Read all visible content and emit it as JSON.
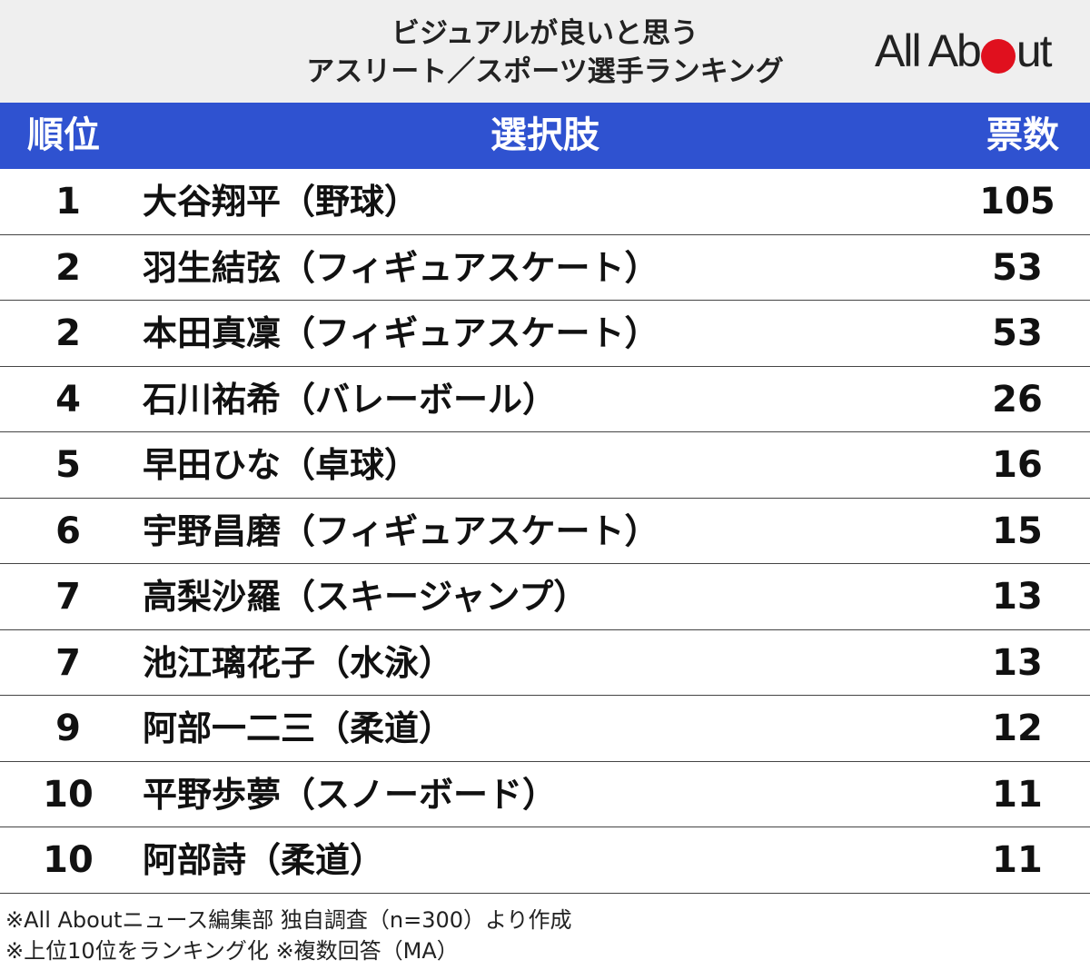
{
  "header": {
    "title_line1": "ビジュアルが良いと思う",
    "title_line2": "アスリート／スポーツ選手ランキング",
    "logo_left": "All Ab",
    "logo_right": "ut"
  },
  "table": {
    "col_rank": "順位",
    "col_choice": "選択肢",
    "col_votes": "票数"
  },
  "chart_data": {
    "type": "table",
    "columns": [
      "順位",
      "選択肢",
      "票数"
    ],
    "rows": [
      {
        "rank": "1",
        "name": "大谷翔平（野球）",
        "votes": "105"
      },
      {
        "rank": "2",
        "name": "羽生結弦（フィギュアスケート）",
        "votes": "53"
      },
      {
        "rank": "2",
        "name": "本田真凜（フィギュアスケート）",
        "votes": "53"
      },
      {
        "rank": "4",
        "name": "石川祐希（バレーボール）",
        "votes": "26"
      },
      {
        "rank": "5",
        "name": "早田ひな（卓球）",
        "votes": "16"
      },
      {
        "rank": "6",
        "name": "宇野昌磨（フィギュアスケート）",
        "votes": "15"
      },
      {
        "rank": "7",
        "name": "高梨沙羅（スキージャンプ）",
        "votes": "13"
      },
      {
        "rank": "7",
        "name": "池江璃花子（水泳）",
        "votes": "13"
      },
      {
        "rank": "9",
        "name": "阿部一二三（柔道）",
        "votes": "12"
      },
      {
        "rank": "10",
        "name": "平野歩夢（スノーボード）",
        "votes": "11"
      },
      {
        "rank": "10",
        "name": "阿部詩（柔道）",
        "votes": "11"
      }
    ]
  },
  "notes": {
    "line1": "※All Aboutニュース編集部 独自調査（n=300）より作成",
    "line2": "※上位10位をランキング化 ※複数回答（MA）"
  },
  "colors": {
    "header_blue": "#2f52d0",
    "logo_red": "#e0101e",
    "title_bg": "#efefef"
  }
}
